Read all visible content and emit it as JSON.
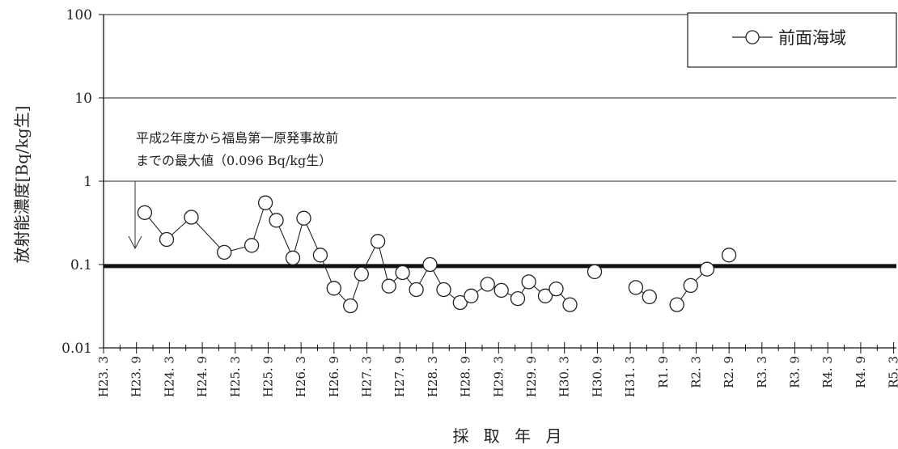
{
  "chart_data": {
    "type": "line",
    "scale_y": "log",
    "ylim": [
      0.01,
      100
    ],
    "y_ticks": [
      "100",
      "10",
      "1",
      "0.1",
      "0.01"
    ],
    "y_tick_values": [
      100,
      10,
      1,
      0.1,
      0.01
    ],
    "xlabel": "採 取 年 月",
    "ylabel": "放射能濃度[Bq/kg生]",
    "x_tick_labels": [
      "H23. 3",
      "H23. 9",
      "H24. 3",
      "H24. 9",
      "H25. 3",
      "H25. 9",
      "H26. 3",
      "H26. 9",
      "H27. 3",
      "H27. 9",
      "H28. 3",
      "H28. 9",
      "H29. 3",
      "H29. 9",
      "H30. 3",
      "H30. 9",
      "H31. 3",
      "R1. 9",
      "R2. 3",
      "R2. 9",
      "R3. 3",
      "R3. 9",
      "R4. 3",
      "R4. 9",
      "R5. 3"
    ],
    "x_tick_months": [
      0,
      6,
      12,
      18,
      24,
      30,
      36,
      42,
      48,
      54,
      60,
      66,
      72,
      78,
      84,
      90,
      96,
      102,
      108,
      114,
      120,
      126,
      132,
      138,
      144
    ],
    "reference": {
      "value": 0.096,
      "label_line1": "平成2年度から福島第一原発事故前",
      "label_line2": "までの最大値（0.096 Bq/kg生）"
    },
    "legend": {
      "position": "top-right",
      "label": "前面海域"
    },
    "series": [
      {
        "name": "前面海域",
        "segments": [
          [
            [
              7.5,
              0.42
            ],
            [
              11.5,
              0.2
            ],
            [
              16,
              0.37
            ],
            [
              22,
              0.14
            ],
            [
              27,
              0.17
            ],
            [
              29.5,
              0.55
            ],
            [
              31.5,
              0.34
            ],
            [
              34.5,
              0.12
            ],
            [
              36.5,
              0.36
            ],
            [
              39.5,
              0.13
            ],
            [
              42,
              0.052
            ],
            [
              45,
              0.032
            ],
            [
              47,
              0.077
            ],
            [
              50,
              0.19
            ],
            [
              52,
              0.055
            ],
            [
              54.5,
              0.08
            ],
            [
              57,
              0.05
            ],
            [
              59.5,
              0.1
            ],
            [
              62,
              0.05
            ],
            [
              65,
              0.035
            ],
            [
              67,
              0.042
            ],
            [
              70,
              0.058
            ],
            [
              72.5,
              0.049
            ],
            [
              75.5,
              0.039
            ],
            [
              77.5,
              0.062
            ],
            [
              80.5,
              0.042
            ],
            [
              82.5,
              0.051
            ],
            [
              85,
              0.033
            ]
          ],
          [
            [
              89.5,
              0.082
            ]
          ],
          [
            [
              97,
              0.053
            ],
            [
              99.5,
              0.041
            ]
          ],
          [
            [
              104.5,
              0.033
            ],
            [
              107,
              0.056
            ],
            [
              110,
              0.088
            ]
          ],
          [
            [
              114,
              0.13
            ]
          ]
        ]
      }
    ]
  }
}
